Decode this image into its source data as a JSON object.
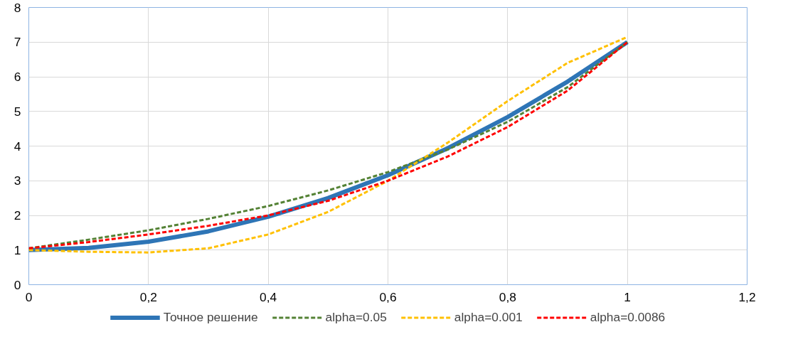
{
  "chart_data": {
    "type": "line",
    "x": [
      0,
      0.1,
      0.2,
      0.3,
      0.4,
      0.5,
      0.6,
      0.7,
      0.8,
      0.9,
      1
    ],
    "series": [
      {
        "name": "Точное решение",
        "color": "#2e75b6",
        "line_style": "solid",
        "values": [
          1,
          1.06,
          1.24,
          1.54,
          1.96,
          2.5,
          3.16,
          3.94,
          4.84,
          5.86,
          7
        ]
      },
      {
        "name": "alpha=0.05",
        "color": "#548235",
        "line_style": "dashed",
        "values": [
          1.05,
          1.3,
          1.57,
          1.9,
          2.27,
          2.72,
          3.25,
          3.9,
          4.7,
          5.7,
          7
        ]
      },
      {
        "name": "alpha=0.001",
        "color": "#ffc000",
        "line_style": "dashed",
        "values": [
          1,
          0.95,
          0.93,
          1.05,
          1.45,
          2.1,
          3,
          4.1,
          5.3,
          6.4,
          7.15
        ]
      },
      {
        "name": "alpha=0.0086",
        "color": "#ff0000",
        "line_style": "dashed",
        "values": [
          1.05,
          1.23,
          1.45,
          1.7,
          2,
          2.42,
          3,
          3.7,
          4.55,
          5.6,
          7
        ]
      }
    ],
    "xlim": [
      0,
      1.2
    ],
    "xticks": [
      0,
      {
        "value": 0.2,
        "label": "0,2"
      },
      {
        "value": 0.4,
        "label": "0,4"
      },
      {
        "value": 0.6,
        "label": "0,6"
      },
      {
        "value": 0.8,
        "label": "0,8"
      },
      1,
      {
        "value": 1.2,
        "label": "1,2"
      }
    ],
    "ylim": [
      0,
      8
    ],
    "yticks": [
      0,
      1,
      2,
      3,
      4,
      5,
      6,
      7,
      8
    ],
    "grid": true,
    "legend": "bottom",
    "marker": "none"
  }
}
